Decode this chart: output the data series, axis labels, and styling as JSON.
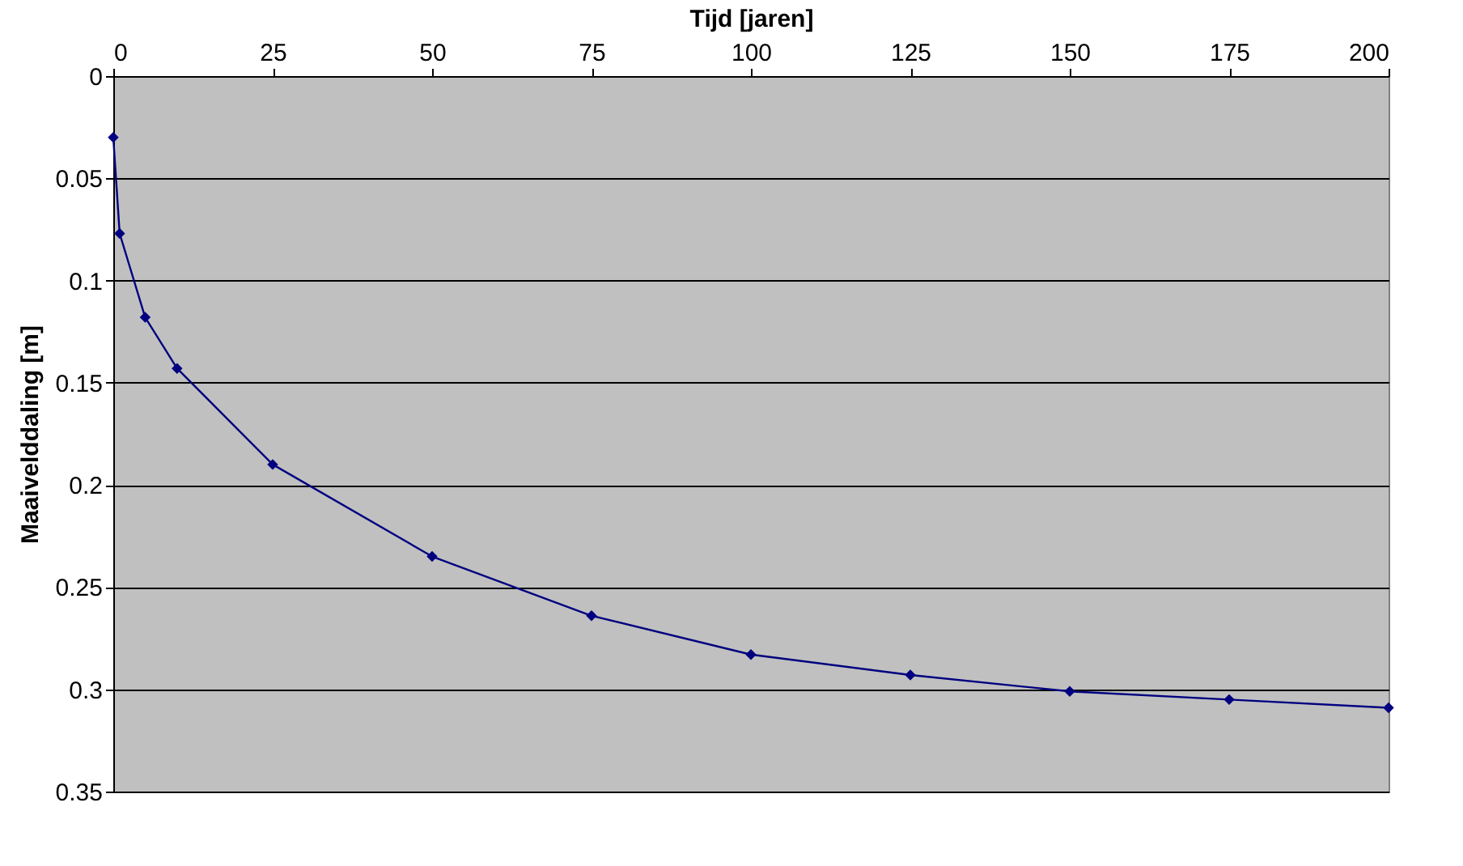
{
  "chart_data": {
    "type": "line",
    "xlabel": "Tijd [jaren]",
    "ylabel": "Maaivelddaling [m]",
    "x": [
      0,
      1,
      5,
      10,
      25,
      50,
      75,
      100,
      125,
      150,
      175,
      200
    ],
    "series": [
      {
        "color": "#000080",
        "values": [
          0.03,
          0.077,
          0.118,
          0.143,
          0.19,
          0.235,
          0.264,
          0.283,
          0.293,
          0.301,
          0.305,
          0.309
        ]
      }
    ],
    "xlim": [
      0,
      200
    ],
    "xticks": [
      0,
      25,
      50,
      75,
      100,
      125,
      150,
      175,
      200
    ],
    "ylim": [
      0.35,
      0
    ],
    "yticks": [
      0,
      0.05,
      0.1,
      0.15,
      0.2,
      0.25,
      0.3,
      0.35
    ],
    "grid": "y",
    "marker": "diamond",
    "line_style": "solid"
  }
}
